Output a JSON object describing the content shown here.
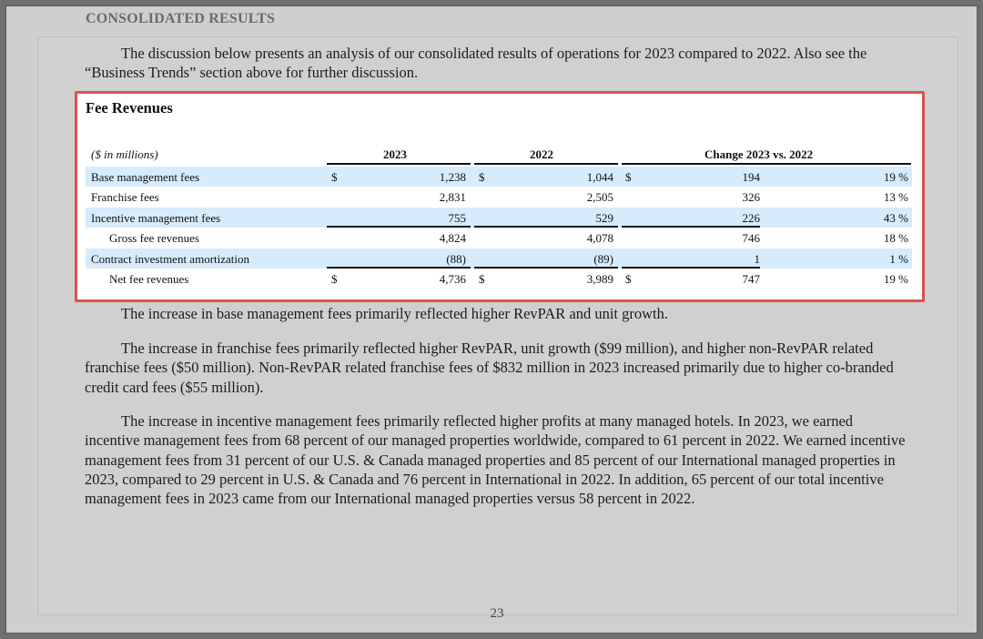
{
  "section_title": "CONSOLIDATED RESULTS",
  "intro": "The discussion below presents an analysis of our consolidated results of operations for 2023 compared to 2022. Also see the “Business Trends” section above for further discussion.",
  "fee_table": {
    "title": "Fee Revenues",
    "units_label": "($ in millions)",
    "col_2023": "2023",
    "col_2022": "2022",
    "col_change": "Change 2023 vs. 2022",
    "rows": [
      {
        "label": "Base management fees",
        "d1": "$",
        "v2023": "1,238",
        "d2": "$",
        "v2022": "1,044",
        "d3": "$",
        "chg": "194",
        "pct": "19 %"
      },
      {
        "label": "Franchise fees",
        "v2023": "2,831",
        "v2022": "2,505",
        "chg": "326",
        "pct": "13 %"
      },
      {
        "label": "Incentive management fees",
        "v2023": "755",
        "v2022": "529",
        "chg": "226",
        "pct": "43 %"
      },
      {
        "label": "Gross fee revenues",
        "v2023": "4,824",
        "v2022": "4,078",
        "chg": "746",
        "pct": "18 %"
      },
      {
        "label": "Contract investment amortization",
        "v2023": "(88)",
        "v2022": "(89)",
        "chg": "1",
        "pct": "1 %"
      },
      {
        "label": "Net fee revenues",
        "d1": "$",
        "v2023": "4,736",
        "d2": "$",
        "v2022": "3,989",
        "d3": "$",
        "chg": "747",
        "pct": "19 %"
      }
    ]
  },
  "paragraphs": [
    "The increase in base management fees primarily reflected higher RevPAR and unit growth.",
    "The increase in franchise fees primarily reflected higher RevPAR, unit growth ($99 million), and higher non-RevPAR related franchise fees ($50 million). Non-RevPAR related franchise fees of $832 million in 2023 increased primarily due to higher co-branded credit card fees ($55 million).",
    "The increase in incentive management fees primarily reflected higher profits at many managed hotels. In 2023, we earned incentive management fees from 68 percent of our managed properties worldwide, compared to 61 percent in 2022. We earned incentive management fees from 31 percent of our U.S. & Canada managed properties and 85 percent of our International managed properties in 2023, compared to 29 percent in U.S. & Canada and 76 percent in International in 2022. In addition, 65 percent of our total incentive management fees in 2023 came from our International managed properties versus 58 percent in 2022."
  ],
  "page_number": "23"
}
